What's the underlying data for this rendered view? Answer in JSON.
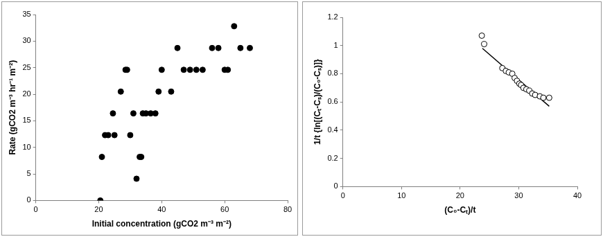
{
  "chart_data": [
    {
      "type": "scatter",
      "x_label": "Initial concentration (gCO2 m⁻³ m⁻²)",
      "y_label": "Rate (gCO2 m⁻³ hr⁻¹ m⁻²)",
      "xlim": [
        0,
        80
      ],
      "xticks": [
        0,
        20,
        40,
        60,
        80
      ],
      "ylim": [
        0,
        35
      ],
      "yticks": [
        0,
        5,
        10,
        15,
        20,
        25,
        30,
        35
      ],
      "grid": false,
      "series": [
        {
          "type": "scatter",
          "marker": "circle",
          "color": "#000000",
          "x": [
            20.5,
            21,
            22,
            23,
            24.5,
            25,
            27,
            28.5,
            29,
            30,
            31,
            32,
            33,
            33.5,
            34,
            35,
            36.5,
            38,
            39,
            40,
            43,
            45,
            47,
            49,
            51,
            53,
            56,
            58,
            60,
            61,
            63,
            65,
            68
          ],
          "values": [
            0,
            8.2,
            12.3,
            12.3,
            16.4,
            12.3,
            20.5,
            24.6,
            24.6,
            12.3,
            16.4,
            4.1,
            8.2,
            8.2,
            16.4,
            16.4,
            16.4,
            16.4,
            20.5,
            24.6,
            20.5,
            28.7,
            24.6,
            24.6,
            24.6,
            24.6,
            28.7,
            28.7,
            24.6,
            24.6,
            32.8,
            28.7,
            28.7
          ]
        }
      ]
    },
    {
      "type": "scatter",
      "x_label": "(C₀-Cₜ)/t",
      "y_label": "1/t {ln[(Cₜ-Cₛ)/(C₀-Cₛ)]}",
      "xlim": [
        0,
        40
      ],
      "xticks": [
        0,
        10,
        20,
        30,
        40
      ],
      "ylim": [
        0,
        1.2
      ],
      "yticks": [
        0,
        0.2,
        0.4,
        0.6,
        0.8,
        1,
        1.2
      ],
      "grid": false,
      "series": [
        {
          "type": "scatter",
          "marker": "circle_open",
          "color": "#000000",
          "x": [
            23.7,
            24.1,
            27.2,
            27.8,
            28.3,
            28.9,
            29.3,
            29.7,
            30.1,
            30.4,
            30.8,
            31.3,
            31.8,
            32.3,
            32.8,
            33.6,
            34.2,
            35.2
          ],
          "values": [
            1.07,
            1.01,
            0.84,
            0.82,
            0.81,
            0.8,
            0.77,
            0.75,
            0.73,
            0.72,
            0.7,
            0.69,
            0.68,
            0.66,
            0.65,
            0.64,
            0.63,
            0.63
          ]
        },
        {
          "type": "line",
          "marker": "none",
          "line_style": "solid",
          "color": "#000000",
          "x": [
            23.8,
            35.2
          ],
          "values": [
            0.98,
            0.57
          ]
        }
      ]
    }
  ]
}
